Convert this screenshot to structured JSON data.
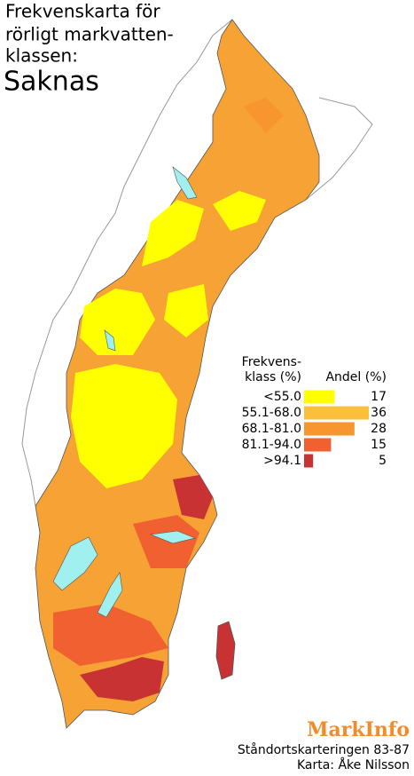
{
  "title": {
    "lines": [
      "Frekvenskarta för",
      "rörligt markvatten-",
      "klassen:"
    ],
    "subtitle": "Saknas"
  },
  "legend": {
    "title": [
      "Frekvens-",
      "klass (%)"
    ],
    "share_title": "Andel (%)",
    "classes": [
      {
        "label": "<55.0",
        "color": "#ffff00",
        "share": 17
      },
      {
        "label": "55.1-68.0",
        "color": "#fbbf3c",
        "share": 36
      },
      {
        "label": "68.1-81.0",
        "color": "#f7962f",
        "share": 28
      },
      {
        "label": "81.1-94.0",
        "color": "#f06030",
        "share": 15
      },
      {
        "label": ">94.1",
        "color": "#c83232",
        "share": 5
      }
    ]
  },
  "credits": {
    "brand": "MarkInfo",
    "lines": [
      "Ståndortskarteringen 83-87",
      "Karta: Åke Nilsson"
    ]
  }
}
